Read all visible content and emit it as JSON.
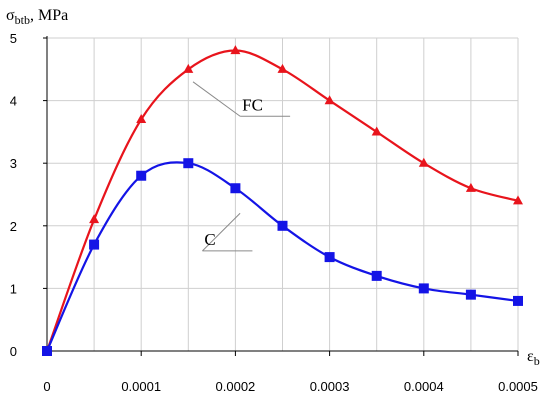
{
  "chart_data": {
    "type": "line",
    "ylabel": {
      "symbol": "σ",
      "subscript": "btb",
      "suffix": ", MPa"
    },
    "xlabel": {
      "symbol": "ε",
      "subscript": "b"
    },
    "xlim": [
      0,
      0.0005
    ],
    "ylim": [
      0,
      5
    ],
    "x_ticks": [
      0,
      0.0001,
      0.0002,
      0.0003,
      0.0004,
      0.0005
    ],
    "x_tick_labels": [
      "0",
      "0.0001",
      "0.0002",
      "0.0003",
      "0.0004",
      "0.0005"
    ],
    "y_ticks": [
      0,
      1,
      2,
      3,
      4,
      5
    ],
    "y_tick_labels": [
      "0",
      "1",
      "2",
      "3",
      "4",
      "5"
    ],
    "x_gridlines": [
      5e-05,
      0.0001,
      0.00015,
      0.0002,
      0.00025,
      0.0003,
      0.00035,
      0.0004,
      0.00045,
      0.0005
    ],
    "y_gridlines": [
      1,
      2,
      3,
      4,
      5
    ],
    "grid": true,
    "series": [
      {
        "name": "FC",
        "color": "#e8141c",
        "marker": "triangle",
        "x": [
          0,
          5e-05,
          0.0001,
          0.00015,
          0.0002,
          0.00025,
          0.0003,
          0.00035,
          0.0004,
          0.00045,
          0.0005
        ],
        "y": [
          0,
          2.1,
          3.7,
          4.5,
          4.8,
          4.5,
          4.0,
          3.5,
          3.0,
          2.6,
          2.4
        ]
      },
      {
        "name": "C",
        "color": "#1414e6",
        "marker": "square",
        "x": [
          0,
          5e-05,
          0.0001,
          0.00015,
          0.0002,
          0.00025,
          0.0003,
          0.00035,
          0.0004,
          0.00045,
          0.0005
        ],
        "y": [
          0,
          1.7,
          2.8,
          3.0,
          2.6,
          2.0,
          1.5,
          1.2,
          1.0,
          0.9,
          0.8
        ]
      }
    ],
    "annotations": [
      {
        "text": "FC",
        "series": "FC",
        "anchor": {
          "x": 0.000155,
          "y": 4.3
        },
        "label_at": {
          "x": 0.000205,
          "y": 3.75
        }
      },
      {
        "text": "C",
        "series": "C",
        "anchor": {
          "x": 0.000205,
          "y": 2.2
        },
        "label_at": {
          "x": 0.000165,
          "y": 1.6
        }
      }
    ]
  }
}
